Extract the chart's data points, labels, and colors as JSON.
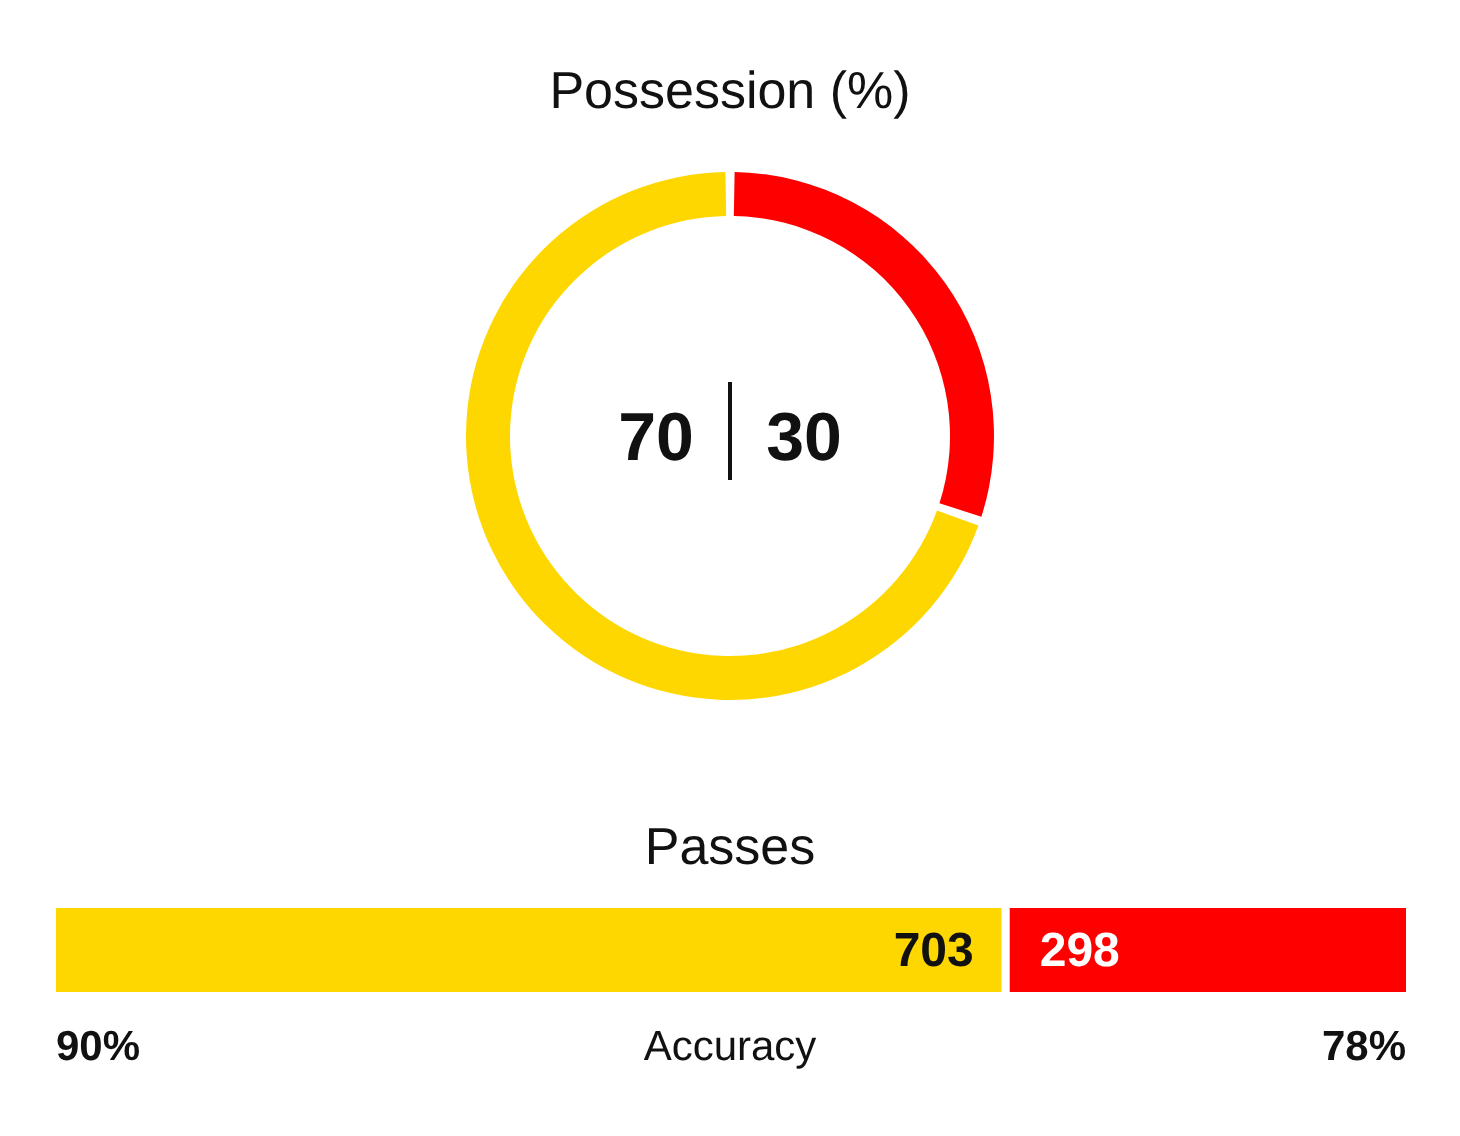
{
  "chart_data": [
    {
      "type": "donut",
      "title": "Possession (%)",
      "categories": [
        null,
        null
      ],
      "values": [
        70,
        30
      ],
      "colors": [
        "#ffd700",
        "#ff0000"
      ],
      "data_labels": true
    },
    {
      "type": "bar",
      "title": "Passes",
      "orientation": "horizontal",
      "stacked": true,
      "categories": [
        null
      ],
      "series": [
        {
          "color": "#ffd700",
          "values": [
            703
          ]
        },
        {
          "color": "#ff0000",
          "values": [
            298
          ]
        }
      ],
      "data_labels": true,
      "annotations": [
        "90%",
        "Accuracy",
        "78%"
      ]
    }
  ]
}
